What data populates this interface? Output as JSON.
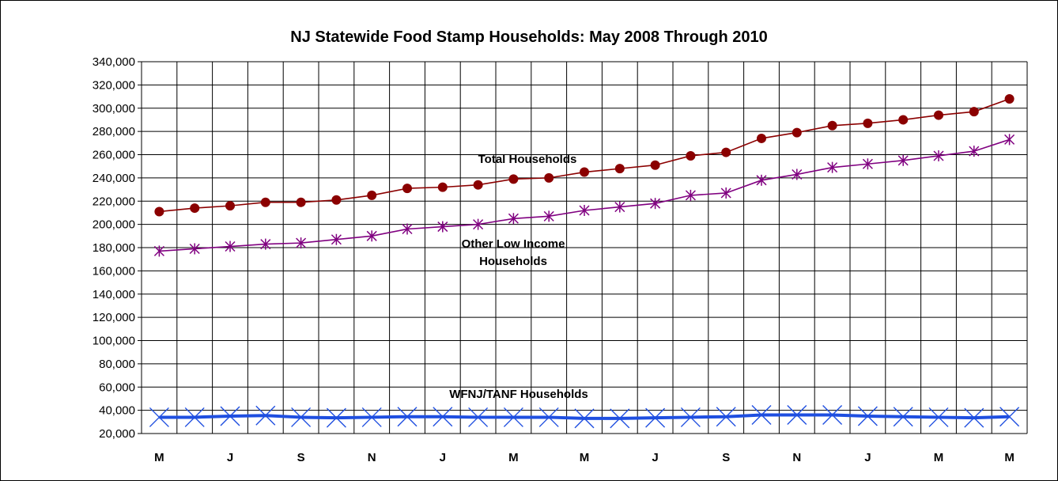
{
  "chart_data": {
    "type": "line",
    "title": "NJ Statewide Food Stamp Households: May 2008 Through 2010",
    "xlabel": "",
    "ylabel": "",
    "ylim": [
      20000,
      340000
    ],
    "ytick_step": 20000,
    "yticks": [
      "20,000",
      "40,000",
      "60,000",
      "80,000",
      "100,000",
      "120,000",
      "140,000",
      "160,000",
      "180,000",
      "200,000",
      "220,000",
      "240,000",
      "260,000",
      "280,000",
      "300,000",
      "320,000",
      "340,000"
    ],
    "x_tick_labels": [
      "M",
      "",
      "J",
      "",
      "S",
      "",
      "N",
      "",
      "J",
      "",
      "M",
      "",
      "M",
      "",
      "J",
      "",
      "S",
      "",
      "N",
      "",
      "J",
      "",
      "M",
      "",
      "M"
    ],
    "grid": true,
    "legend": "none",
    "series": [
      {
        "name": "Total Households",
        "color": "#8B0000",
        "marker": "circle",
        "values": [
          211000,
          214000,
          216000,
          219000,
          219000,
          221000,
          225000,
          231000,
          232000,
          234000,
          239000,
          240000,
          245000,
          248000,
          251000,
          259000,
          262000,
          274000,
          279000,
          285000,
          287000,
          290000,
          294000,
          297000,
          308000
        ]
      },
      {
        "name": "Other Low Income Households",
        "label_lines": [
          "Other Low Income",
          "Households"
        ],
        "color": "#800080",
        "marker": "asterisk",
        "values": [
          177000,
          179000,
          181000,
          183000,
          184000,
          187000,
          190000,
          196000,
          198000,
          200000,
          205000,
          207000,
          212000,
          215000,
          218000,
          225000,
          227000,
          238000,
          243000,
          249000,
          252000,
          255000,
          259000,
          263000,
          273000
        ]
      },
      {
        "name": "WFNJ/TANF Households",
        "color": "#1F4FE0",
        "marker": "x",
        "values": [
          34000,
          34000,
          35000,
          35500,
          34000,
          33500,
          34000,
          34500,
          34500,
          34000,
          34000,
          34000,
          33000,
          33000,
          33500,
          34000,
          34500,
          36000,
          36000,
          36000,
          35000,
          34500,
          34000,
          33500,
          34500
        ]
      }
    ]
  }
}
